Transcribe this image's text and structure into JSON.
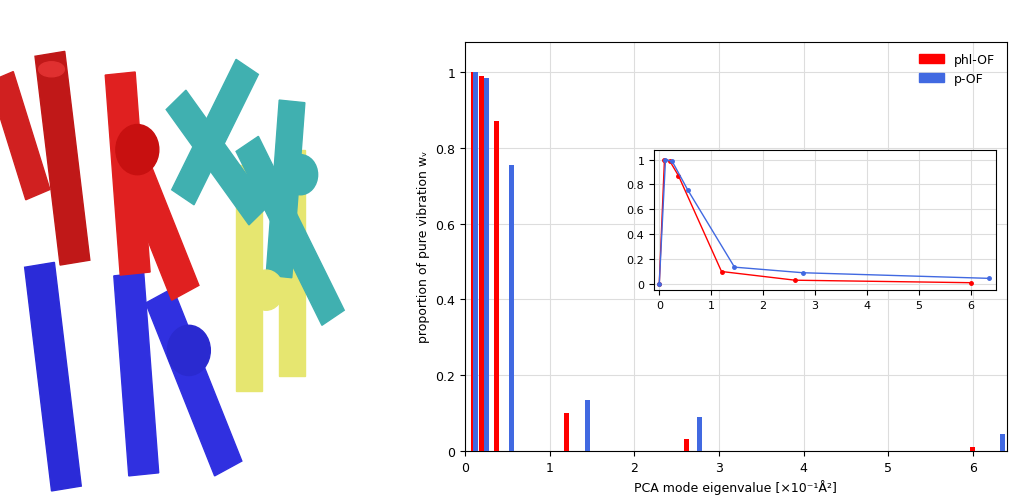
{
  "chart_data": [
    {
      "type": "bar",
      "x_label": "PCA mode eigenvalue [×10⁻¹Å²]",
      "y_label": "proportion of pure vibration wᵥ",
      "series": [
        {
          "name": "phl-OF",
          "color": "#ff0000",
          "x": [
            0.1,
            0.2,
            0.37,
            1.2,
            2.62,
            6.0
          ],
          "values": [
            1.0,
            0.99,
            0.87,
            0.1,
            0.03,
            0.01
          ]
        },
        {
          "name": "p-OF",
          "color": "#4169e1",
          "x": [
            0.12,
            0.25,
            0.55,
            1.45,
            2.77,
            6.35
          ],
          "values": [
            1.0,
            0.985,
            0.755,
            0.135,
            0.09,
            0.045
          ]
        }
      ],
      "xlim": [
        0,
        6.4
      ],
      "xticks": [
        0,
        1,
        2,
        3,
        4,
        5,
        6
      ],
      "ylim": [
        0,
        1.08
      ],
      "yticks": [
        0,
        0.2,
        0.4,
        0.6,
        0.8,
        1
      ],
      "grid": true,
      "legend": "upper right"
    },
    {
      "type": "line",
      "series": [
        {
          "color": "#ff0000",
          "marker": "o",
          "x": [
            0,
            0.1,
            0.2,
            0.37,
            1.2,
            2.62,
            6.0
          ],
          "values": [
            0,
            1.0,
            0.99,
            0.87,
            0.1,
            0.03,
            0.01
          ]
        },
        {
          "color": "#4169e1",
          "marker": "o",
          "x": [
            0,
            0.12,
            0.25,
            0.55,
            1.45,
            2.77,
            6.35
          ],
          "values": [
            0,
            1.0,
            0.985,
            0.755,
            0.135,
            0.09,
            0.045
          ]
        }
      ],
      "xlim": [
        -0.1,
        6.5
      ],
      "xticks": [
        0,
        1,
        2,
        3,
        4,
        5,
        6
      ],
      "ylim": [
        -0.05,
        1.08
      ],
      "yticks": [
        0,
        0.2,
        0.4,
        0.6,
        0.8,
        1
      ],
      "grid": true
    }
  ]
}
